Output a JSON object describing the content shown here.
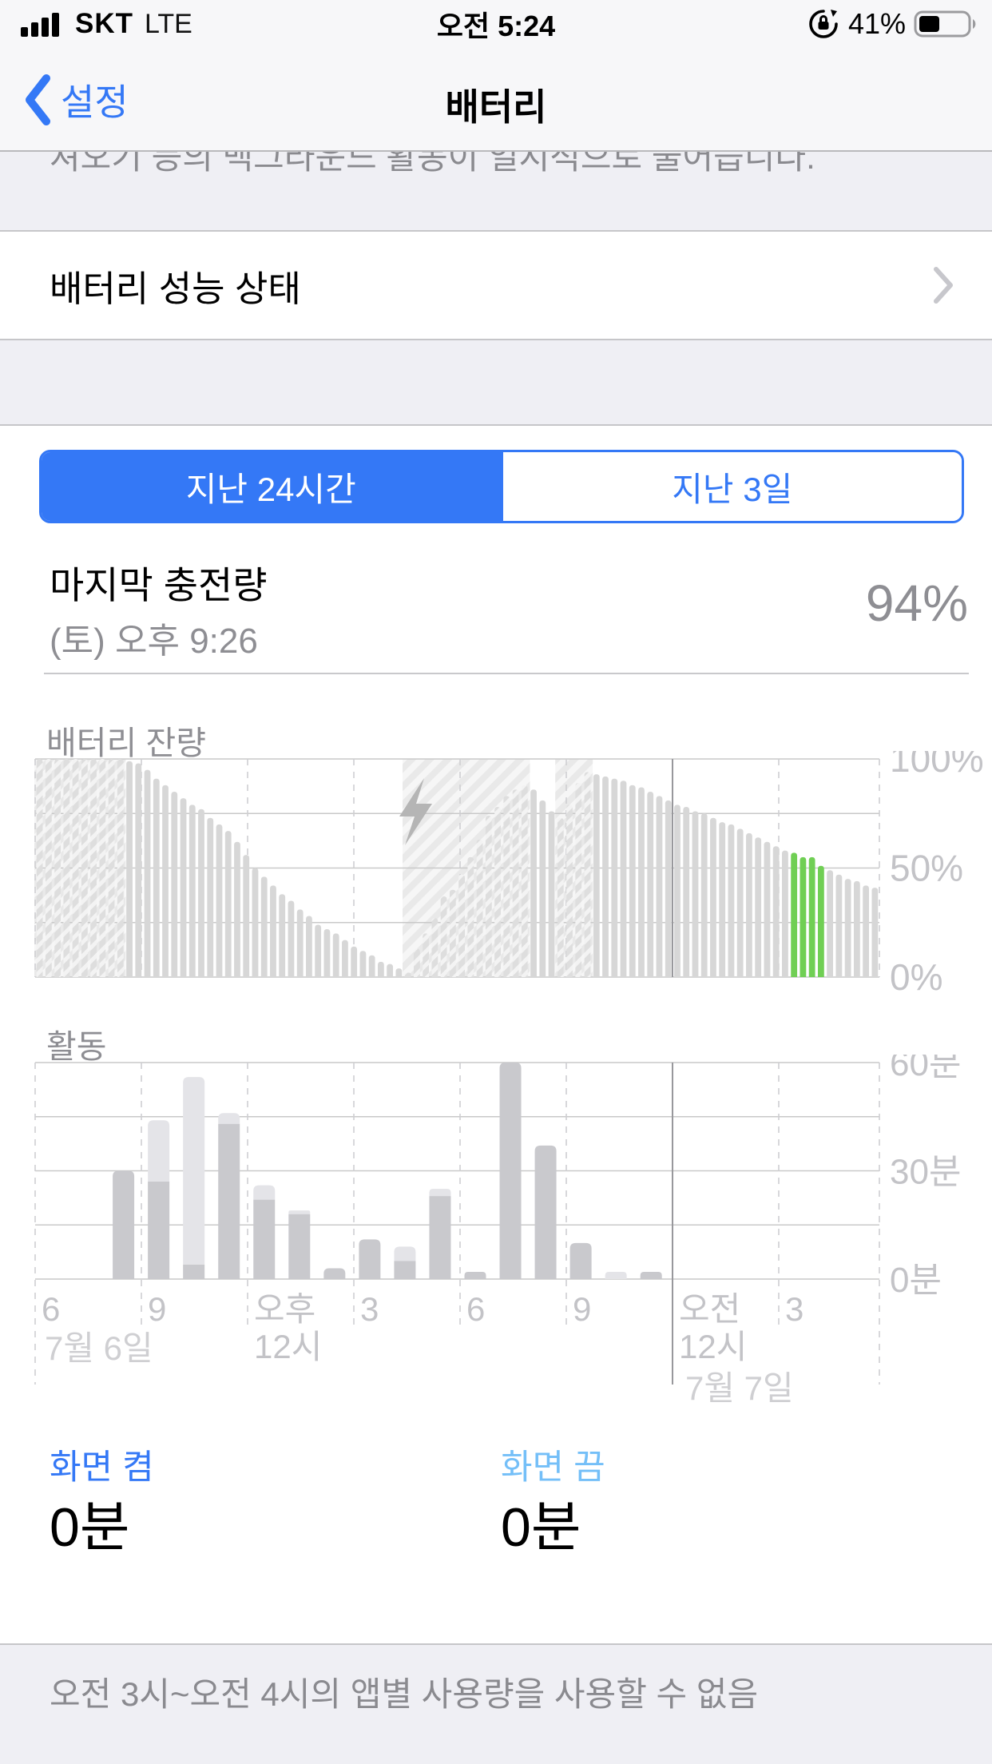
{
  "status_bar": {
    "signal_icon": "cellular-signal-4-bars",
    "carrier": "SKT",
    "network": "LTE",
    "time": "오전 5:24",
    "rotation_lock_icon": "orientation-lock",
    "battery_percent": "41%",
    "battery_icon": "battery-level-41"
  },
  "nav": {
    "back_label": "설정",
    "title": "배터리"
  },
  "clipped_footnote": "져오기 등의 백그라운드 활동이 일시적으로 줄어듭니다.",
  "battery_health_row": {
    "label": "배터리 성능 상태",
    "chevron_icon": "chevron-right-icon"
  },
  "segmented": {
    "options": [
      "지난 24시간",
      "지난 3일"
    ],
    "selected": "지난 24시간"
  },
  "last_charge": {
    "label": "마지막 충전량",
    "time": "(토) 오후 9:26",
    "value": "94%"
  },
  "screen_stats": {
    "on_label": "화면 켬",
    "on_value": "0분",
    "off_label": "화면 끔",
    "off_value": "0분"
  },
  "footer_note": "오전 3시~오전 4시의 앱별 사용량을 사용할 수 없음",
  "colors": {
    "accent_blue": "#3478f6",
    "screen_off_blue": "#74bff8",
    "highlight_green": "#70cf54",
    "secondary_text": "#8e8e93",
    "axis_label": "#c3c3c7",
    "grid_line": "#c9c9c9",
    "dashed_line": "#cfcfd2",
    "midnight_line": "#98989c",
    "bar_gray": "#d7d7d7",
    "bar_dark": "#c9c9cd",
    "bar_light": "#e4e4e8",
    "section_bg": "#efeff4"
  },
  "chart_data": [
    {
      "type": "bar",
      "title": "배터리 잔량",
      "unit": "%",
      "y_tick_labels": [
        "100%",
        "50%",
        "0%"
      ],
      "ylim": [
        0,
        100
      ],
      "bar_interval_minutes": 15,
      "x_ticks": [
        "6",
        "9",
        "오후 12시",
        "3",
        "6",
        "9",
        "오전 12시",
        "3"
      ],
      "x_span_hours": 24,
      "charging_bolt_icon": "lightning-bolt-icon",
      "state_key": {
        "c": "charging-hatched",
        "g": "highlighted-green",
        "n": "normal"
      },
      "states": "ccccccccccnnnnnnnnnnnnnnnnnnnnnnnnnnnnnnnccccccccccccccnnnccccnnnnnnnnnnnnnnnnnnnnnnggggnnnnnn",
      "values": [
        100,
        100,
        100,
        100,
        100,
        100,
        100,
        100,
        100,
        100,
        99,
        98,
        95,
        91,
        88,
        85,
        82,
        79,
        77,
        73,
        70,
        67,
        62,
        56,
        50,
        46,
        42,
        38,
        35,
        31,
        28,
        24,
        22,
        20,
        17,
        14,
        12,
        10,
        7,
        6,
        4,
        2,
        13,
        20,
        27,
        37,
        40,
        47,
        55,
        63,
        74,
        78,
        83,
        86,
        88,
        86,
        81,
        76,
        73,
        79,
        89,
        94,
        93,
        92,
        91,
        90,
        88,
        87,
        85,
        83,
        81,
        79,
        78,
        76,
        75,
        73,
        71,
        70,
        68,
        66,
        64,
        62,
        60,
        58,
        57,
        55,
        55,
        51,
        49,
        47,
        45,
        44,
        42,
        41
      ]
    },
    {
      "type": "stacked-bar",
      "title": "활동",
      "unit": "분",
      "y_tick_labels": [
        "60분",
        "30분",
        "0분"
      ],
      "ylim_minutes": [
        0,
        60
      ],
      "x_start_hour": 6,
      "categories_hours": [
        "6",
        "7",
        "8",
        "9",
        "10",
        "11",
        "오후 12",
        "1",
        "2",
        "3",
        "4",
        "5",
        "6",
        "7",
        "8",
        "9",
        "10",
        "11",
        "오전 12",
        "1",
        "2",
        "3",
        "4",
        "5"
      ],
      "series": [
        {
          "name": "화면 켬",
          "values": [
            0,
            0,
            30,
            27,
            4,
            43,
            22,
            18,
            3,
            11,
            5,
            23,
            2,
            60,
            37,
            10,
            0,
            2,
            0,
            0,
            0,
            0,
            0,
            0
          ]
        },
        {
          "name": "화면 끔",
          "values": [
            0,
            0,
            0,
            17,
            52,
            3,
            4,
            1,
            0,
            0,
            4,
            2,
            0,
            0,
            0,
            0,
            2,
            0,
            0,
            0,
            0,
            0,
            0,
            0
          ]
        }
      ],
      "x_ticks": [
        {
          "label": "6",
          "date": "7월 6일"
        },
        {
          "label": "9"
        },
        {
          "label": "오후",
          "label2": "12시"
        },
        {
          "label": "3"
        },
        {
          "label": "6"
        },
        {
          "label": "9"
        },
        {
          "label": "오전",
          "label2": "12시",
          "date": "7월 7일"
        },
        {
          "label": "3"
        }
      ]
    }
  ]
}
